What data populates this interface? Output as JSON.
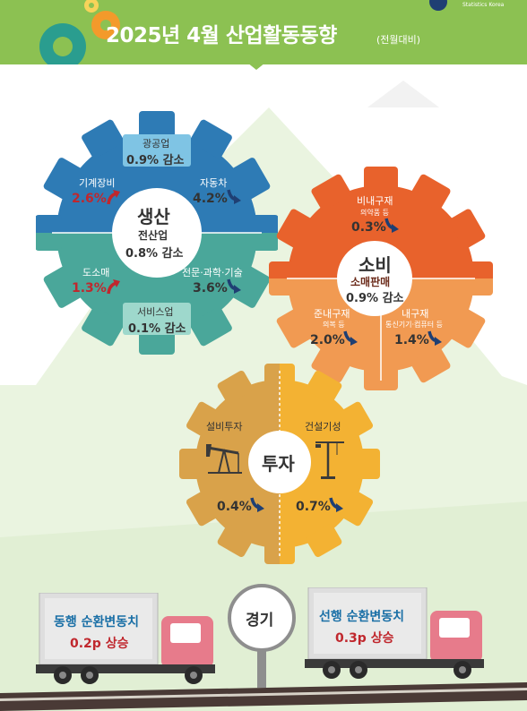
{
  "header": {
    "title": "2025년 4월 산업활동동향",
    "subtitle": "(전월대비)",
    "org": "Statistics Korea"
  },
  "production": {
    "label": "생산",
    "total_label": "전산업",
    "total_value": "0.8% 감소",
    "mining": {
      "label": "광공업",
      "value": "0.9% 감소"
    },
    "machinery": {
      "label": "기계장비",
      "value": "2.6%",
      "direction": "up"
    },
    "auto": {
      "label": "자동차",
      "value": "4.2%",
      "direction": "down"
    },
    "wholesale": {
      "label": "도소매",
      "value": "1.3%",
      "direction": "up"
    },
    "professional": {
      "label": "전문·과학·기술",
      "value": "3.6%",
      "direction": "down"
    },
    "service": {
      "label": "서비스업",
      "value": "0.1% 감소"
    }
  },
  "consumption": {
    "label": "소비",
    "total_label": "소매판매",
    "total_value": "0.9% 감소",
    "nondurable": {
      "label": "비내구재",
      "sub": "의약품 등",
      "value": "0.3%",
      "direction": "down"
    },
    "semidurable": {
      "label": "준내구재",
      "sub": "의복 등",
      "value": "2.0%",
      "direction": "down"
    },
    "durable": {
      "label": "내구재",
      "sub": "통신기기·컴퓨터 등",
      "value": "1.4%",
      "direction": "down"
    }
  },
  "investment": {
    "label": "투자",
    "facility": {
      "label": "설비투자",
      "value": "0.4%",
      "direction": "down"
    },
    "construction": {
      "label": "건설기성",
      "value": "0.7%",
      "direction": "down"
    }
  },
  "economy": {
    "label": "경기",
    "coincident": {
      "label": "동행 순환변동치",
      "value": "0.2p 상승"
    },
    "leading": {
      "label": "선행 순환변동치",
      "value": "0.3p 상승"
    }
  },
  "colors": {
    "header_green": "#8cc152",
    "prod_blue": "#2e7bb5",
    "prod_teal": "#4aa79a",
    "cons_orange": "#e8622c",
    "cons_light": "#f19a52",
    "inv_tan": "#d9a24a",
    "inv_yellow": "#f3b233",
    "up_red": "#c0272d",
    "down_navy": "#1f3f73"
  }
}
